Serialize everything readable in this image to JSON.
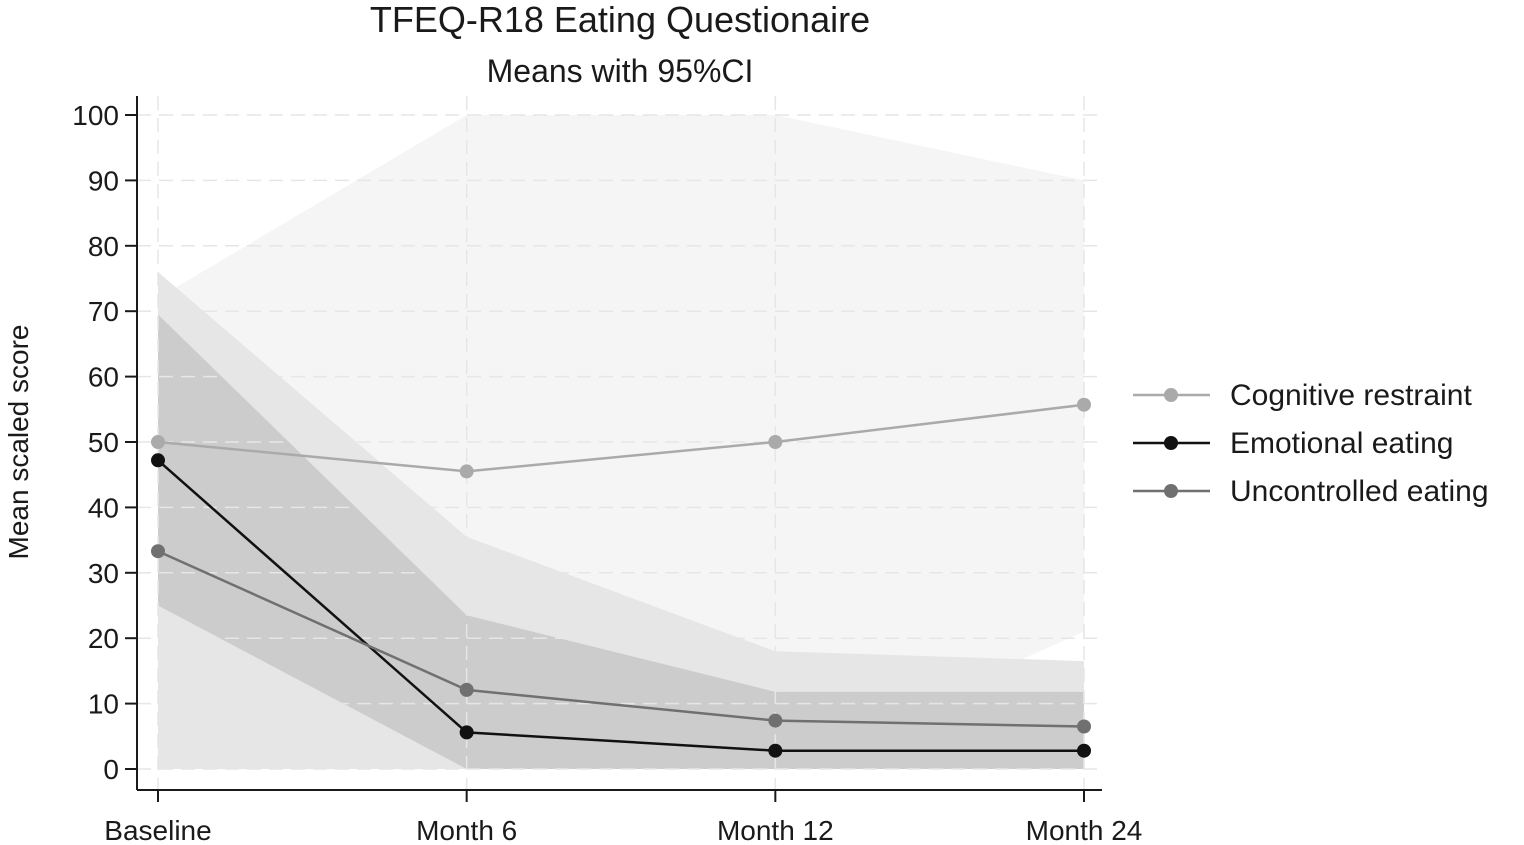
{
  "chart_data": {
    "type": "line",
    "title": "TFEQ-R18 Eating Questionaire",
    "subtitle": "Means with 95%CI",
    "xlabel": "",
    "ylabel": "Mean scaled score",
    "categories": [
      "Baseline",
      "Month 6",
      "Month 12",
      "Month 24"
    ],
    "ylim": [
      0,
      100
    ],
    "yticks": [
      0,
      10,
      20,
      30,
      40,
      50,
      60,
      70,
      80,
      90,
      100
    ],
    "grid": true,
    "legend_position": "right",
    "series": [
      {
        "name": "Cognitive restraint",
        "values": [
          50,
          45.5,
          50,
          55.7
        ],
        "ci_lower": [
          28,
          0,
          0,
          21
        ],
        "ci_upper": [
          72,
          100,
          100,
          90
        ],
        "color": "#aaaaaa",
        "band_color": "#f5f5f5"
      },
      {
        "name": "Emotional eating",
        "values": [
          47.2,
          5.6,
          2.8,
          2.8
        ],
        "ci_lower": [
          25,
          0,
          0,
          0
        ],
        "ci_upper": [
          69.5,
          23.5,
          11.8,
          11.8
        ],
        "color": "#111111",
        "band_color": "#cccccc"
      },
      {
        "name": "Uncontrolled eating",
        "values": [
          33.3,
          12.1,
          7.4,
          6.5
        ],
        "ci_lower": [
          0,
          0,
          0,
          0
        ],
        "ci_upper": [
          76,
          35.5,
          18,
          16.5
        ],
        "color": "#707070",
        "band_color": "#e6e6e6"
      }
    ]
  }
}
